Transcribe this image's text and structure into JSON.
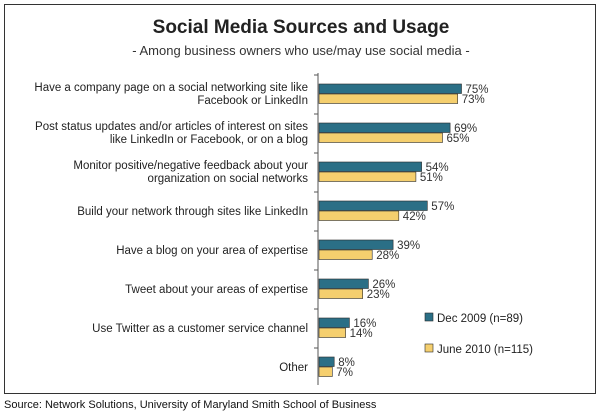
{
  "chart_data": {
    "type": "bar",
    "orientation": "horizontal",
    "title": "Social Media Sources and Usage",
    "subtitle": "- Among business owners who use/may use social media -",
    "categories": [
      [
        "Have a company page on a social networking site like",
        "Facebook or LinkedIn"
      ],
      [
        "Post status updates and/or articles of interest on sites",
        "like LinkedIn or Facebook, or on a blog"
      ],
      [
        "Monitor positive/negative feedback about your",
        "organization on social networks"
      ],
      [
        "Build your network through sites like LinkedIn"
      ],
      [
        "Have a blog on your area of expertise"
      ],
      [
        "Tweet about your areas of expertise"
      ],
      [
        "Use Twitter as a customer service channel"
      ],
      [
        "Other"
      ]
    ],
    "series": [
      {
        "name": "Dec 2009 (n=89)",
        "color": "#2b6f86",
        "values": [
          75,
          69,
          54,
          57,
          39,
          26,
          16,
          8
        ],
        "value_labels": [
          "75%",
          "69%",
          "54%",
          "57%",
          "39%",
          "26%",
          "16%",
          "8%"
        ]
      },
      {
        "name": "June 2010 (n=115)",
        "color": "#f5cf6e",
        "values": [
          73,
          65,
          51,
          42,
          28,
          23,
          14,
          7
        ],
        "value_labels": [
          "73%",
          "65%",
          "51%",
          "42%",
          "28%",
          "23%",
          "14%",
          "7%"
        ]
      }
    ],
    "xlim": [
      0,
      100
    ],
    "grid": false,
    "legend_position": "bottom-right",
    "source": "Source: Network Solutions, University of Maryland Smith School of Business"
  }
}
